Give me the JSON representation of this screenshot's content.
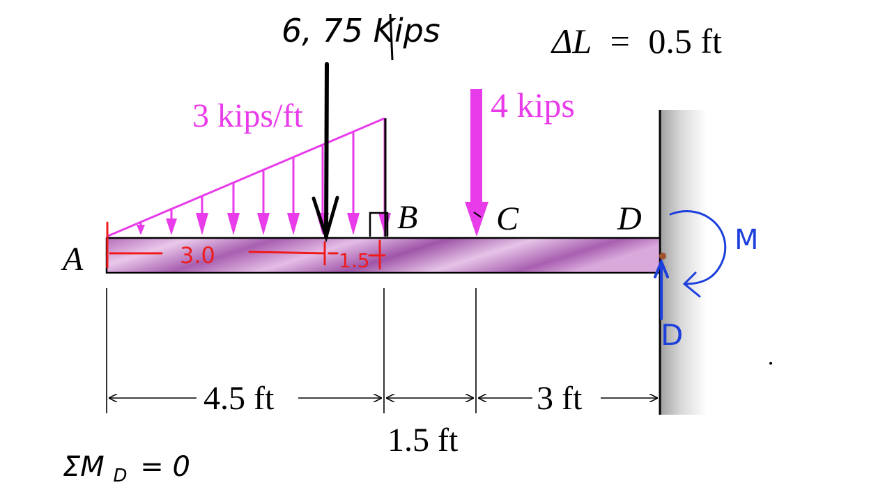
{
  "points": {
    "a": "A",
    "b": "B",
    "c": "C",
    "d": "D"
  },
  "loads": {
    "distributed": "3 kips/ft",
    "point_c": "4 kips",
    "resultant": "6, 75 Kips"
  },
  "delta": {
    "symbol": "ΔL",
    "equals": "=",
    "value": "0.5 ft"
  },
  "dimensions": {
    "ab": "4.5 ft",
    "bc": "1.5 ft",
    "cd": "3 ft"
  },
  "annotations": {
    "dist_30": "3.0",
    "dist_15": "1.5",
    "moment": "M",
    "reaction": "D",
    "equation": "ΣM",
    "equation_sub": "D",
    "equation_rest": "= 0"
  },
  "colors": {
    "magenta": "#e83cea",
    "red": "#ee1c1c",
    "blue": "#1d3fdc",
    "black": "#000000",
    "beam_purple": "#a85fb0"
  }
}
